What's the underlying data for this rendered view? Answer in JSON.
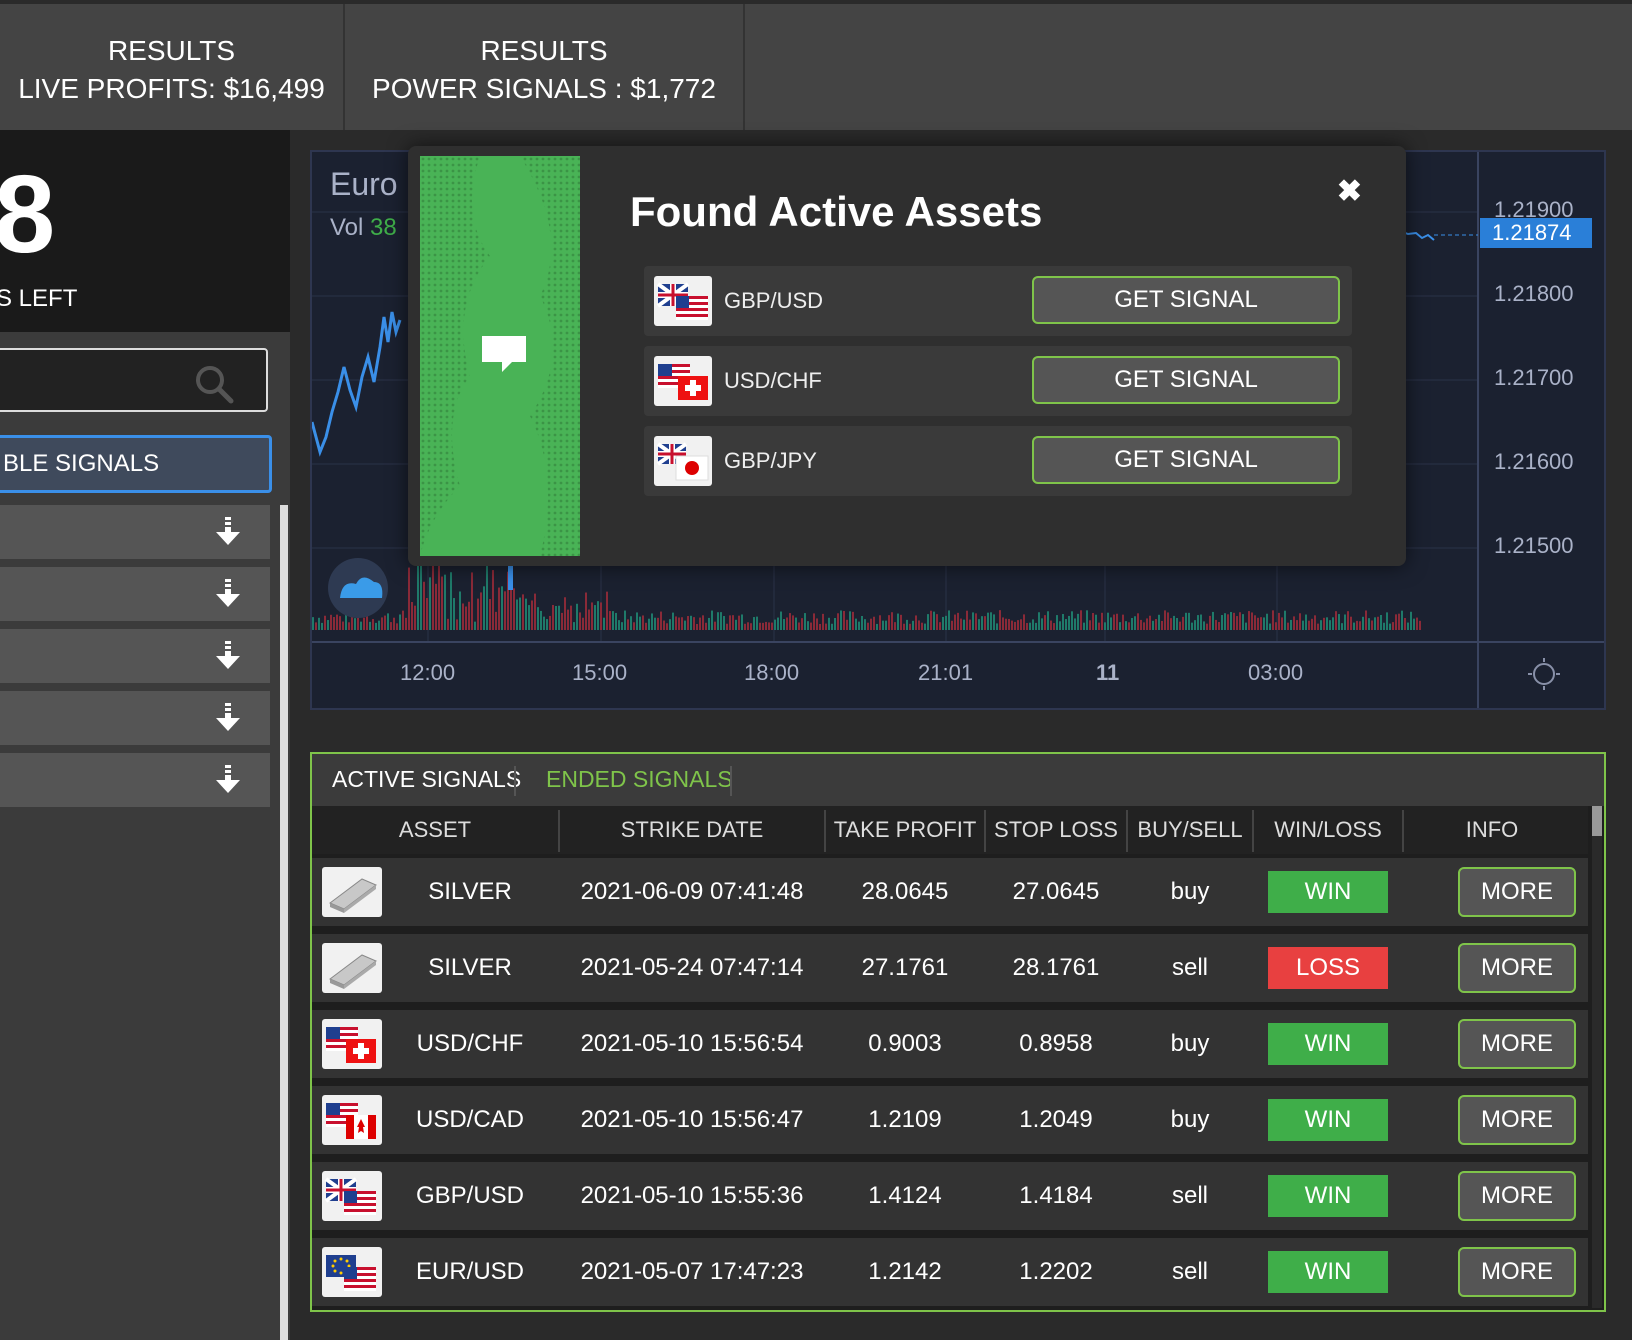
{
  "results": [
    {
      "label": "RESULTS",
      "value": "LIVE PROFITS: $16,499"
    },
    {
      "label": "RESULTS",
      "value": "POWER SIGNALS : $1,772"
    }
  ],
  "sidebar": {
    "counter_value": "8",
    "counter_label": "S LEFT",
    "available_label": "BLE SIGNALS",
    "item_count": 5
  },
  "chart": {
    "title": "Euro",
    "vol_label": "Vol",
    "vol_value": "38",
    "price_badge": "1.21874",
    "y_ticks": [
      "1.21900",
      "1.21800",
      "1.21700",
      "1.21600",
      "1.21500"
    ],
    "x_ticks": [
      "12:00",
      "15:00",
      "18:00",
      "21:01",
      "11",
      "03:00"
    ]
  },
  "modal": {
    "title": "Found Active Assets",
    "close_glyph": "✖",
    "assets": [
      {
        "name": "GBP/USD",
        "button": "GET SIGNAL"
      },
      {
        "name": "USD/CHF",
        "button": "GET SIGNAL"
      },
      {
        "name": "GBP/JPY",
        "button": "GET SIGNAL"
      }
    ]
  },
  "signals": {
    "tabs": [
      "ACTIVE SIGNALS",
      "ENDED SIGNALS"
    ],
    "columns": [
      "ASSET",
      "STRIKE DATE",
      "TAKE PROFIT",
      "STOP LOSS",
      "BUY/SELL",
      "WIN/LOSS",
      "INFO"
    ],
    "rows": [
      {
        "asset": "SILVER",
        "date": "2021-06-09 07:41:48",
        "tp": "28.0645",
        "sl": "27.0645",
        "side": "buy",
        "result": "WIN",
        "info": "MORE"
      },
      {
        "asset": "SILVER",
        "date": "2021-05-24 07:47:14",
        "tp": "27.1761",
        "sl": "28.1761",
        "side": "sell",
        "result": "LOSS",
        "info": "MORE"
      },
      {
        "asset": "USD/CHF",
        "date": "2021-05-10 15:56:54",
        "tp": "0.9003",
        "sl": "0.8958",
        "side": "buy",
        "result": "WIN",
        "info": "MORE"
      },
      {
        "asset": "USD/CAD",
        "date": "2021-05-10 15:56:47",
        "tp": "1.2109",
        "sl": "1.2049",
        "side": "buy",
        "result": "WIN",
        "info": "MORE"
      },
      {
        "asset": "GBP/USD",
        "date": "2021-05-10 15:55:36",
        "tp": "1.4124",
        "sl": "1.4184",
        "side": "sell",
        "result": "WIN",
        "info": "MORE"
      },
      {
        "asset": "EUR/USD",
        "date": "2021-05-07 17:47:23",
        "tp": "1.2142",
        "sl": "1.2202",
        "side": "sell",
        "result": "WIN",
        "info": "MORE"
      }
    ]
  },
  "colors": {
    "win": "#3fae49",
    "loss": "#e84040",
    "accent_green": "#7fc44a",
    "accent_blue": "#3a8fe8"
  }
}
